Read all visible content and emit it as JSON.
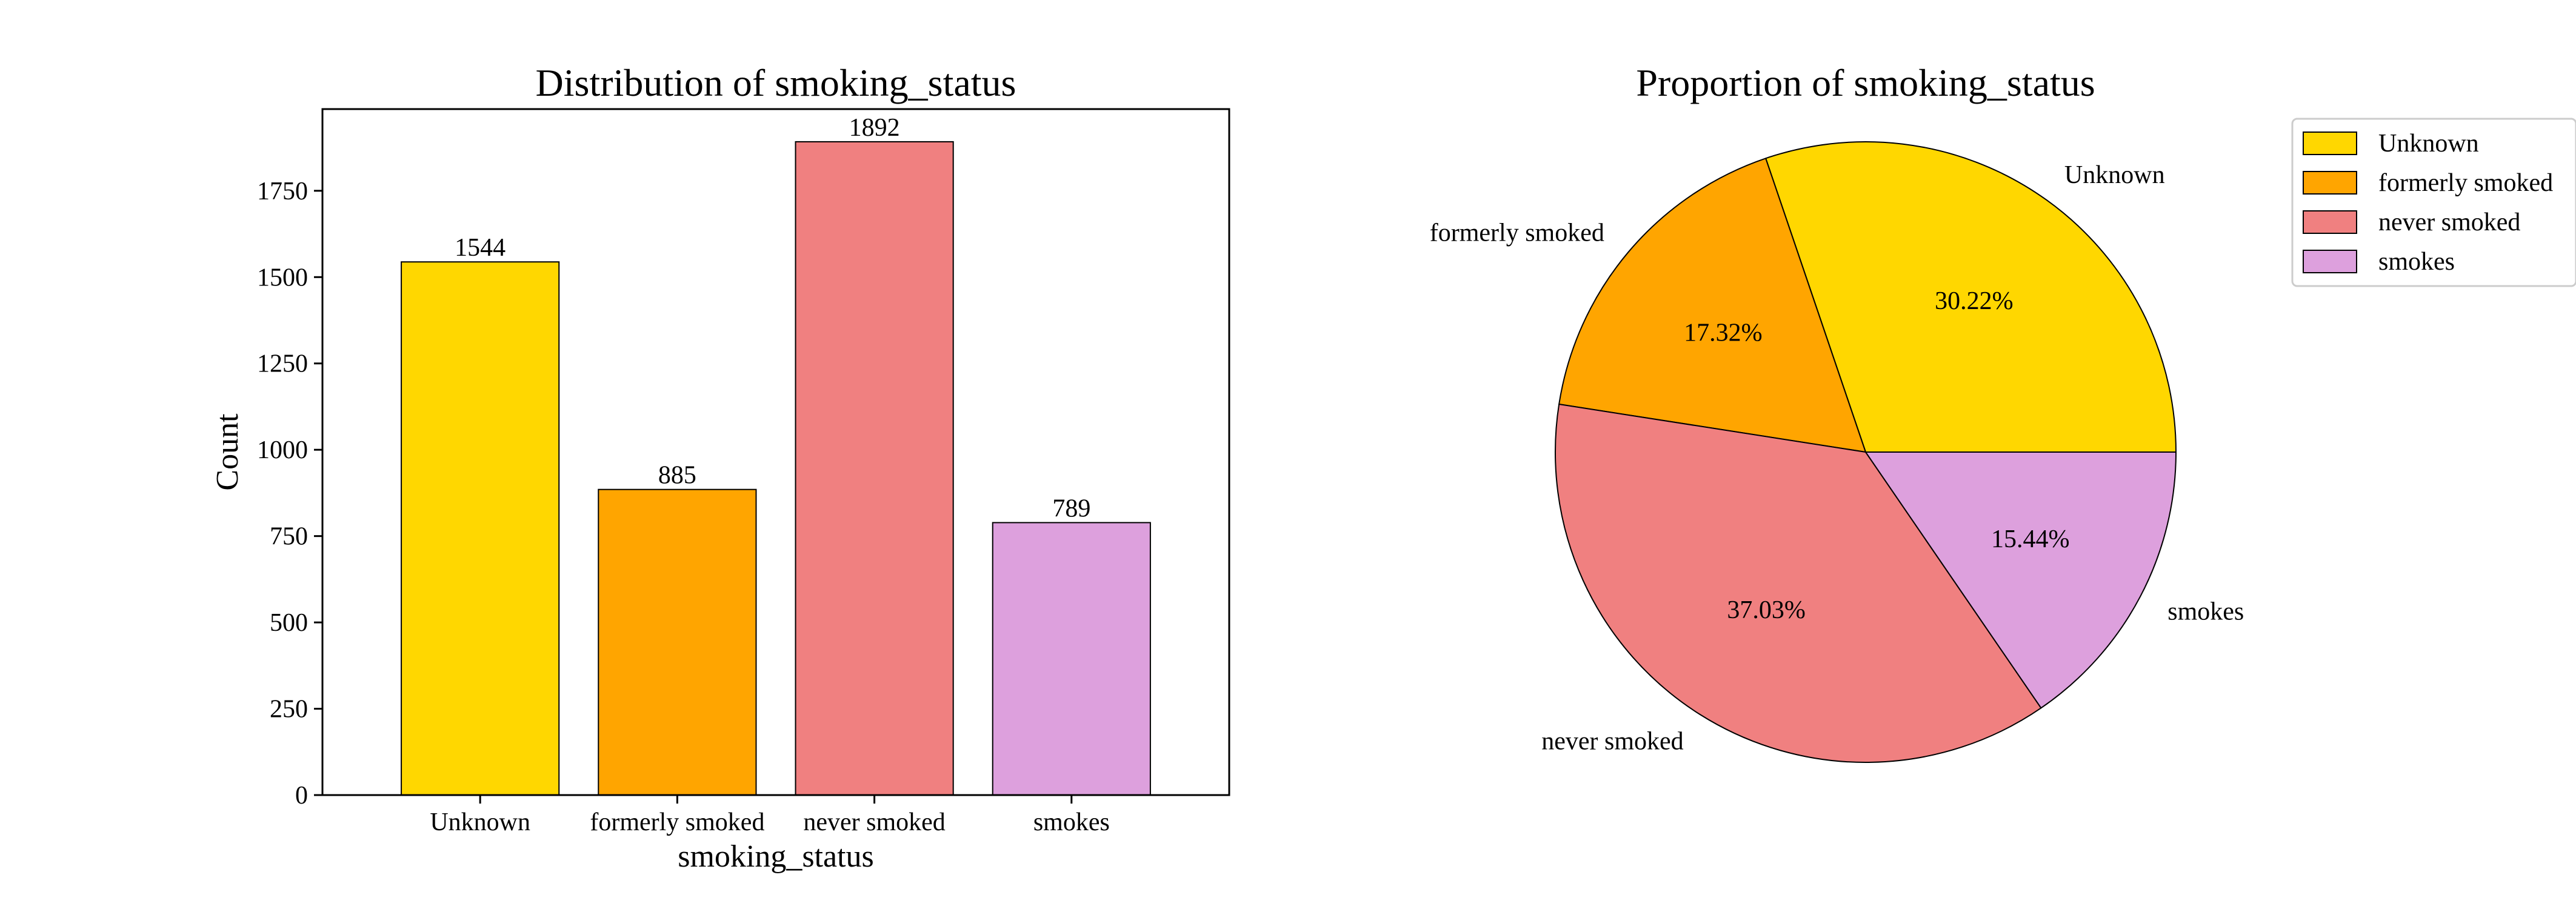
{
  "chart_data": [
    {
      "type": "bar",
      "title": "Distribution of smoking_status",
      "xlabel": "smoking_status",
      "ylabel": "Count",
      "categories": [
        "Unknown",
        "formerly smoked",
        "never smoked",
        "smokes"
      ],
      "values": [
        1544,
        885,
        1892,
        789
      ],
      "data_labels": [
        "1544",
        "885",
        "1892",
        "789"
      ],
      "colors": [
        "#FFD700",
        "#FFA500",
        "#F08080",
        "#DDA0DD"
      ],
      "ylim": [
        0,
        1986.6
      ],
      "yticks": [
        0,
        250,
        500,
        750,
        1000,
        1250,
        1500,
        1750
      ],
      "ytick_labels": [
        "0",
        "250",
        "500",
        "750",
        "1000",
        "1250",
        "1500",
        "1750"
      ],
      "grid": false,
      "legend": false
    },
    {
      "type": "pie",
      "title": "Proportion of smoking_status",
      "labels": [
        "Unknown",
        "formerly smoked",
        "never smoked",
        "smokes"
      ],
      "values": [
        30.22,
        17.32,
        37.03,
        15.44
      ],
      "pct_labels": [
        "30.22%",
        "17.32%",
        "37.03%",
        "15.44%"
      ],
      "colors": [
        "#FFD700",
        "#FFA500",
        "#F08080",
        "#DDA0DD"
      ],
      "legend": "top-right",
      "start_angle": 0,
      "direction": "counterclockwise"
    }
  ]
}
